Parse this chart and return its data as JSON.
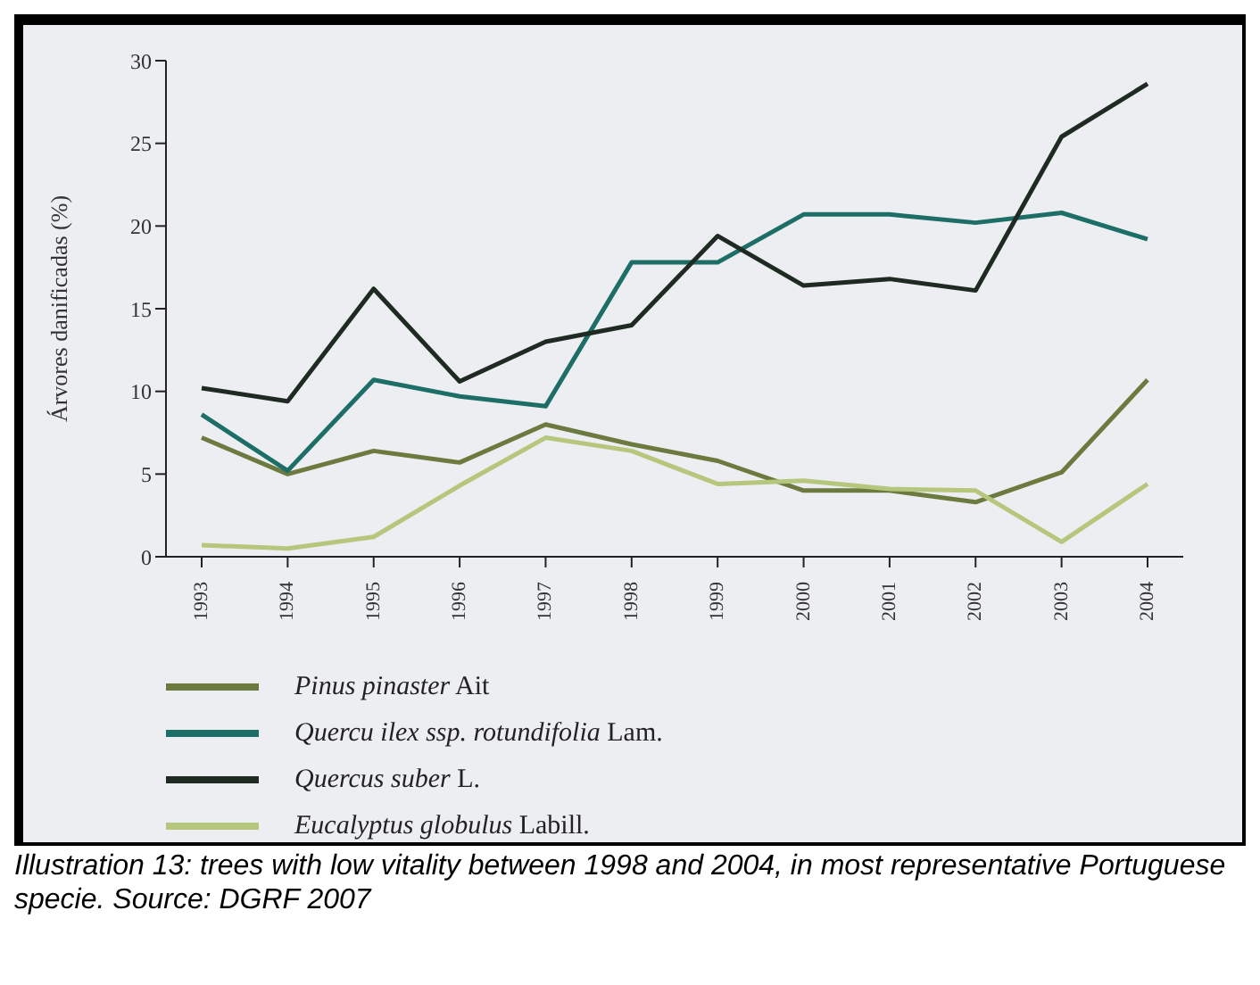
{
  "chart_data": {
    "type": "line",
    "ylabel": "Árvores danificadas (%)",
    "categories": [
      "1993",
      "1994",
      "1995",
      "1996",
      "1997",
      "1998",
      "1999",
      "2000",
      "2001",
      "2002",
      "2003",
      "2004"
    ],
    "series": [
      {
        "name": "Pinus pinaster Ait",
        "color": "#6b7a3e",
        "values": [
          7.2,
          5.0,
          6.4,
          5.7,
          8.0,
          6.8,
          5.8,
          4.0,
          4.0,
          3.3,
          5.1,
          10.7
        ]
      },
      {
        "name": "Quercu ilex ssp. rotundifolia Lam.",
        "color": "#1e6e68",
        "values": [
          8.6,
          5.2,
          10.7,
          9.7,
          9.1,
          17.8,
          17.8,
          20.7,
          20.7,
          20.2,
          20.8,
          19.2
        ]
      },
      {
        "name": "Quercus suber L.",
        "color": "#1f2a22",
        "values": [
          10.2,
          9.4,
          16.2,
          10.6,
          13.0,
          14.0,
          19.4,
          16.4,
          16.8,
          16.1,
          25.4,
          28.6
        ]
      },
      {
        "name": "Eucalyptus globulus Labill.",
        "color": "#b5c77c",
        "values": [
          0.7,
          0.5,
          1.2,
          4.3,
          7.2,
          6.4,
          4.4,
          4.6,
          4.1,
          4.0,
          0.9,
          4.4
        ]
      }
    ],
    "ylim": [
      0,
      30
    ],
    "yticks": [
      0,
      5,
      10,
      15,
      20,
      25,
      30
    ],
    "grid": false,
    "legend": "bottom",
    "marker": "none",
    "line_style": "solid",
    "annotations": [
      "Illustration 13: trees with low vitality between 1998 and 2004, in most representative Portuguese specie. Source: DGRF 2007"
    ]
  }
}
